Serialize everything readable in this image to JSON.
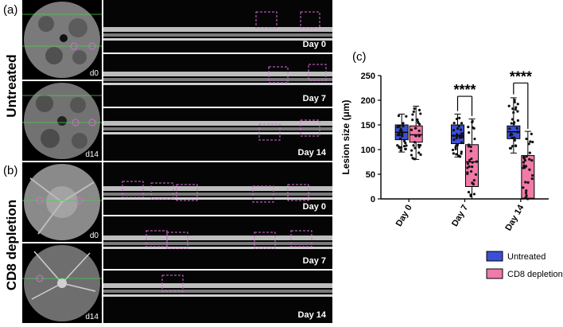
{
  "panel_a": {
    "label": "(a)",
    "group": "Untreated",
    "fundus": [
      "d0",
      "d14"
    ],
    "scans": [
      "Day 0",
      "Day 7",
      "Day 14"
    ]
  },
  "panel_b": {
    "label": "(b)",
    "group": "CD8 depletion",
    "fundus": [
      "d0",
      "d14"
    ],
    "scans": [
      "Day 0",
      "Day 7",
      "Day 14"
    ]
  },
  "panel_c": {
    "label": "(c)"
  },
  "chart_data": {
    "type": "box",
    "categories": [
      "Day 0",
      "Day 7",
      "Day 14"
    ],
    "ylabel": "Lesion size (μm)",
    "ylim": [
      0,
      250
    ],
    "yticks": [
      0,
      50,
      100,
      150,
      200,
      250
    ],
    "series": [
      {
        "name": "Untreated",
        "color": "#3b4fd6",
        "boxes": [
          {
            "min": 95,
            "q1": 120,
            "median": 135,
            "q3": 150,
            "max": 172
          },
          {
            "min": 85,
            "q1": 112,
            "median": 128,
            "q3": 150,
            "max": 172
          },
          {
            "min": 93,
            "q1": 122,
            "median": 136,
            "q3": 148,
            "max": 205
          }
        ]
      },
      {
        "name": "CD8 depletion",
        "color": "#f07aa8",
        "boxes": [
          {
            "min": 80,
            "q1": 115,
            "median": 130,
            "q3": 148,
            "max": 188
          },
          {
            "min": 0,
            "q1": 25,
            "median": 75,
            "q3": 110,
            "max": 162
          },
          {
            "min": 0,
            "q1": 0,
            "median": 1,
            "q3": 88,
            "max": 137
          }
        ]
      }
    ],
    "annotations": [
      {
        "text": "****",
        "category": "Day 7"
      },
      {
        "text": "****",
        "category": "Day 14"
      }
    ]
  }
}
